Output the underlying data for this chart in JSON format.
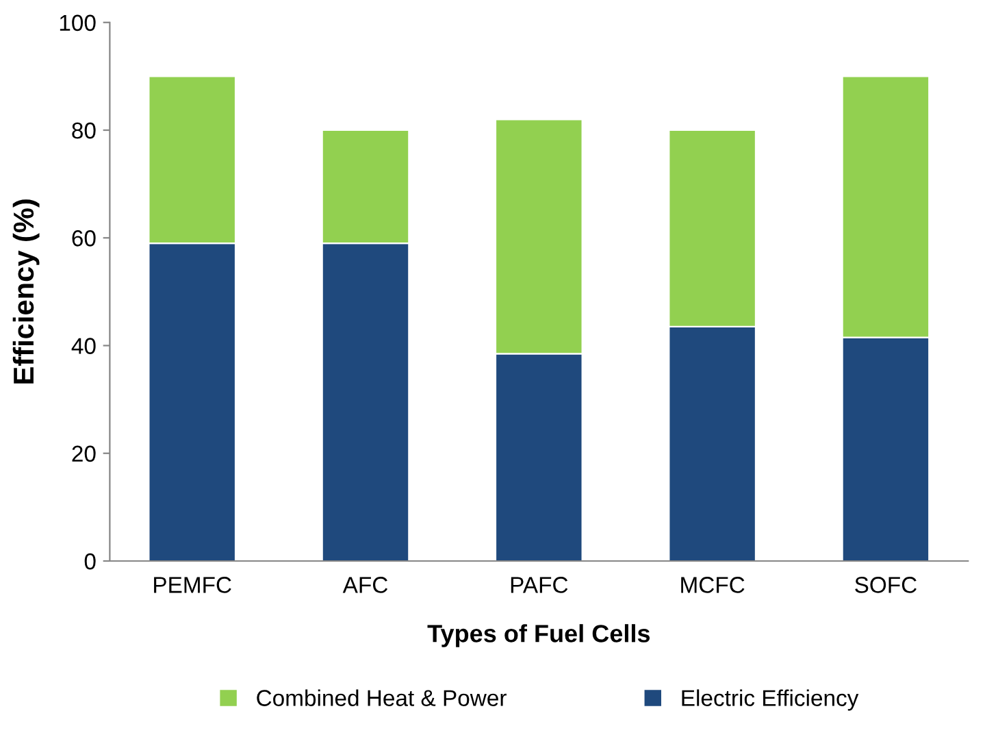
{
  "chart_data": {
    "type": "bar",
    "stacked": true,
    "xlabel": "Types of Fuel Cells",
    "ylabel": "Efficiency (%)",
    "categories": [
      "PEMFC",
      "AFC",
      "PAFC",
      "MCFC",
      "SOFC"
    ],
    "series": [
      {
        "name": "Electric Efficiency",
        "color": "#1f497d",
        "values": [
          59,
          59,
          38.5,
          43.5,
          41.5
        ]
      },
      {
        "name": "Combined Heat & Power",
        "color": "#92d050",
        "values": [
          31,
          21,
          43.5,
          36.5,
          48.5
        ]
      }
    ],
    "ylim": [
      0,
      100
    ],
    "yticks": [
      0,
      20,
      40,
      60,
      80,
      100
    ],
    "grid": false,
    "legend": "bottom"
  }
}
